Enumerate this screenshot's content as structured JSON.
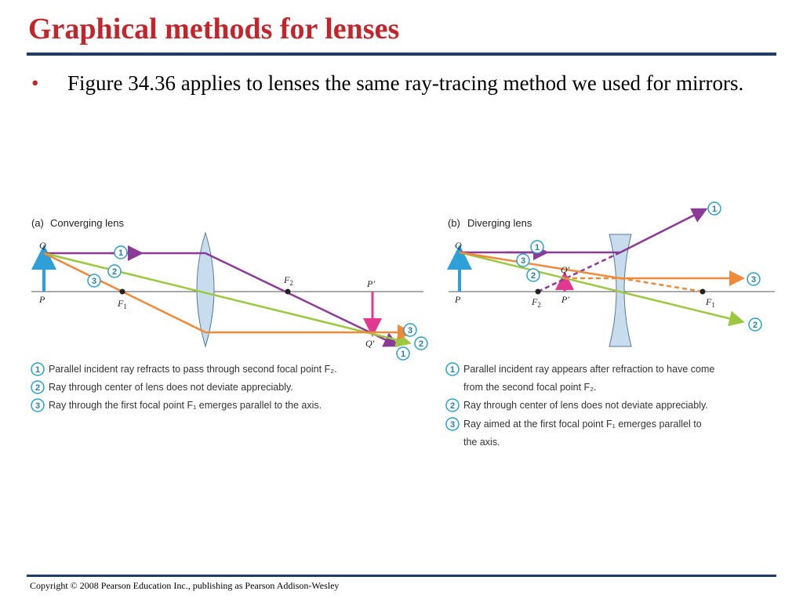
{
  "slide": {
    "title": "Graphical methods for lenses",
    "bullet": "Figure 34.36 applies to lenses the same ray-tracing method we used for mirrors.",
    "copyright": "Copyright © 2008 Pearson Education Inc., publishing as Pearson Addison-Wesley"
  },
  "colors": {
    "title": "#c0262b",
    "rule": "#1f3c6d",
    "ray1": "#8b3a96",
    "ray2": "#9bc83e",
    "ray3": "#ef8a3a",
    "object_arrow": "#2f9fd8",
    "image_arrow": "#e0398f",
    "badge_border": "#2aa0c8",
    "lens_fill": "#c7ddee"
  },
  "panel_a": {
    "caption_tag": "(a)",
    "caption": "Converging lens",
    "labels": {
      "Q": "Q",
      "P": "P",
      "F1": "F",
      "F1_sub": "1",
      "F2": "F",
      "F2_sub": "2",
      "Pprime": "P′",
      "Qprime": "Q′"
    },
    "badges": {
      "one": "1",
      "two": "2",
      "three": "3"
    },
    "notes": [
      {
        "num": "1",
        "text": "Parallel incident ray refracts to pass through second focal point F₂."
      },
      {
        "num": "2",
        "text": "Ray through center of lens does not deviate appreciably."
      },
      {
        "num": "3",
        "text": "Ray through the first focal point F₁ emerges parallel to the axis."
      }
    ]
  },
  "panel_b": {
    "caption_tag": "(b)",
    "caption": "Diverging lens",
    "labels": {
      "Q": "Q",
      "P": "P",
      "F1": "F",
      "F1_sub": "1",
      "F2": "F",
      "F2_sub": "2",
      "Pprime": "P′",
      "Qprime": "Q′"
    },
    "badges": {
      "one": "1",
      "two": "2",
      "three": "3"
    },
    "notes": [
      {
        "num": "1",
        "text": "Parallel incident ray appears after refraction to have come"
      },
      {
        "num": "",
        "text": "from the second focal point F₂."
      },
      {
        "num": "2",
        "text": "Ray through center of lens does not deviate appreciably."
      },
      {
        "num": "3",
        "text": "Ray aimed at the first focal point F₁ emerges parallel to"
      },
      {
        "num": "",
        "text": "the axis."
      }
    ]
  }
}
